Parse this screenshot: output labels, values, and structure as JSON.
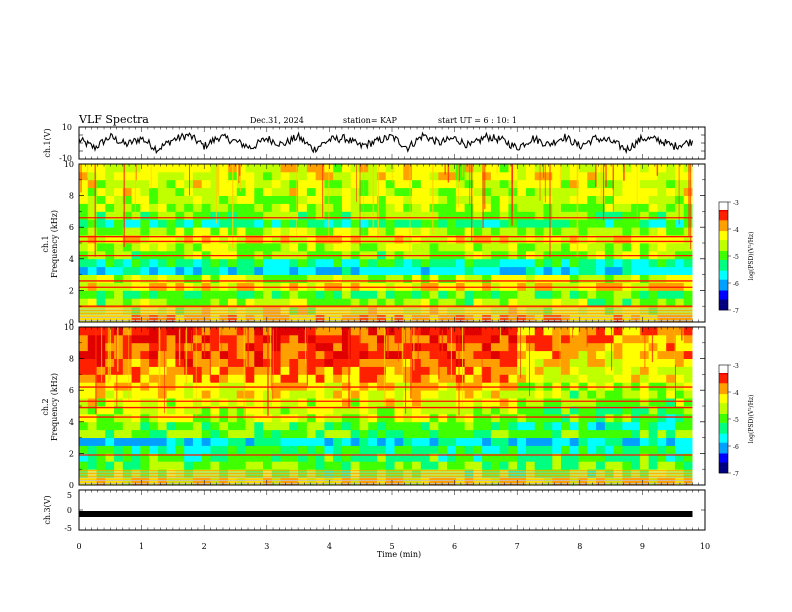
{
  "header": {
    "title": "VLF Spectra",
    "date": "Dec.31, 2024",
    "station": "station= KAP",
    "start": "start UT =  6 : 10: 1"
  },
  "colorbar_colors": [
    "#000080",
    "#0000ff",
    "#00a0ff",
    "#00ffff",
    "#00ff80",
    "#40ff00",
    "#c0ff00",
    "#ffff00",
    "#ffa000",
    "#ff2000",
    "#e00000",
    "#ffffff"
  ],
  "chart_data": [
    {
      "type": "line",
      "panel": "ch1-waveform",
      "ylabel": "ch.1(V)",
      "ylim": [
        -10,
        10
      ],
      "y_ticklabels": [
        "10",
        "-10"
      ],
      "x": [
        0,
        0.25,
        0.5,
        0.75,
        1.0,
        1.25,
        1.5,
        1.75,
        2.0,
        2.25,
        2.5,
        2.75,
        3.0,
        3.25,
        3.5,
        3.75,
        4.0,
        4.25,
        4.5,
        4.75,
        5.0,
        5.25,
        5.5,
        5.75,
        6.0,
        6.25,
        6.5,
        6.75,
        7.0,
        7.25,
        7.5,
        7.75,
        8.0,
        8.25,
        8.5,
        8.75,
        9.0,
        9.25,
        9.5,
        9.8
      ],
      "values": [
        2,
        -3,
        4,
        -1,
        3,
        -4,
        2,
        5,
        -2,
        4,
        1,
        -3,
        3,
        -1,
        4,
        -4,
        2,
        3,
        -2,
        1,
        4,
        -3,
        5,
        0,
        3,
        -2,
        4,
        2,
        -3,
        3,
        -1,
        4,
        -2,
        3,
        1,
        -4,
        3,
        2,
        -2,
        1
      ]
    },
    {
      "type": "heatmap",
      "panel": "ch1-spectrogram",
      "ylabel": "ch.1\nFrequency (kHz)",
      "ylim": [
        0,
        10
      ],
      "y_ticklabels": [
        "0",
        "2",
        "4",
        "6",
        "8",
        "10"
      ],
      "xlim": [
        0,
        9.8
      ],
      "colorbar": {
        "label": "log(PSD)(V²/Hz)",
        "range": [
          -7,
          -3
        ],
        "ticklabels": [
          "-3",
          "-4",
          "-5",
          "-6",
          "-7"
        ]
      },
      "freq_kHz": [
        0,
        0.5,
        1,
        1.5,
        2,
        2.5,
        3,
        3.5,
        4,
        4.5,
        5,
        5.5,
        6,
        6.5,
        7,
        7.5,
        8,
        8.5,
        9,
        9.5
      ],
      "log_psd": [
        -4.0,
        -4.5,
        -4.8,
        -5.0,
        -4.2,
        -4.6,
        -5.8,
        -5.4,
        -4.8,
        -4.6,
        -4.3,
        -4.7,
        -5.4,
        -4.9,
        -4.7,
        -4.6,
        -4.5,
        -4.5,
        -4.4,
        -4.4
      ],
      "lines_kHz": [
        5.1,
        5.4,
        2.2,
        6.6,
        4.2,
        2.6,
        1.0
      ]
    },
    {
      "type": "heatmap",
      "panel": "ch2-spectrogram",
      "ylabel": "ch.2\nFrequency (kHz)",
      "ylim": [
        0,
        10
      ],
      "y_ticklabels": [
        "0",
        "2",
        "4",
        "6",
        "8",
        "10"
      ],
      "xlim": [
        0,
        9.8
      ],
      "colorbar": {
        "label": "log(PSD)(V²/Hz)",
        "range": [
          -7,
          -3
        ],
        "ticklabels": [
          "-3",
          "-4",
          "-5",
          "-6",
          "-7"
        ]
      },
      "freq_kHz": [
        0,
        0.5,
        1,
        1.5,
        2,
        2.5,
        3,
        3.5,
        4,
        4.5,
        5,
        5.5,
        6,
        6.5,
        7,
        7.5,
        8,
        8.5,
        9,
        9.5
      ],
      "log_psd": [
        -4.2,
        -4.8,
        -5.0,
        -5.2,
        -5.4,
        -5.8,
        -5.0,
        -5.0,
        -4.7,
        -4.6,
        -4.4,
        -4.3,
        -4.2,
        -3.9,
        -3.8,
        -3.7,
        -3.6,
        -3.6,
        -3.5,
        -3.5
      ],
      "lines_kHz": [
        5.3,
        4.9,
        6.2,
        4.3,
        1.9
      ],
      "step_change_min": 7.0
    },
    {
      "type": "line",
      "panel": "ch3-waveform",
      "ylabel": "ch.3(V)",
      "ylim": [
        -5,
        5
      ],
      "y_ticklabels": [
        "5",
        "0",
        "-5"
      ],
      "x": [
        0,
        9.8
      ],
      "values": [
        -1,
        -1
      ],
      "xlabel": "Time (min)",
      "xlim": [
        0,
        10
      ],
      "x_ticklabels": [
        "0",
        "1",
        "2",
        "3",
        "4",
        "5",
        "6",
        "7",
        "8",
        "9",
        "10"
      ]
    }
  ]
}
